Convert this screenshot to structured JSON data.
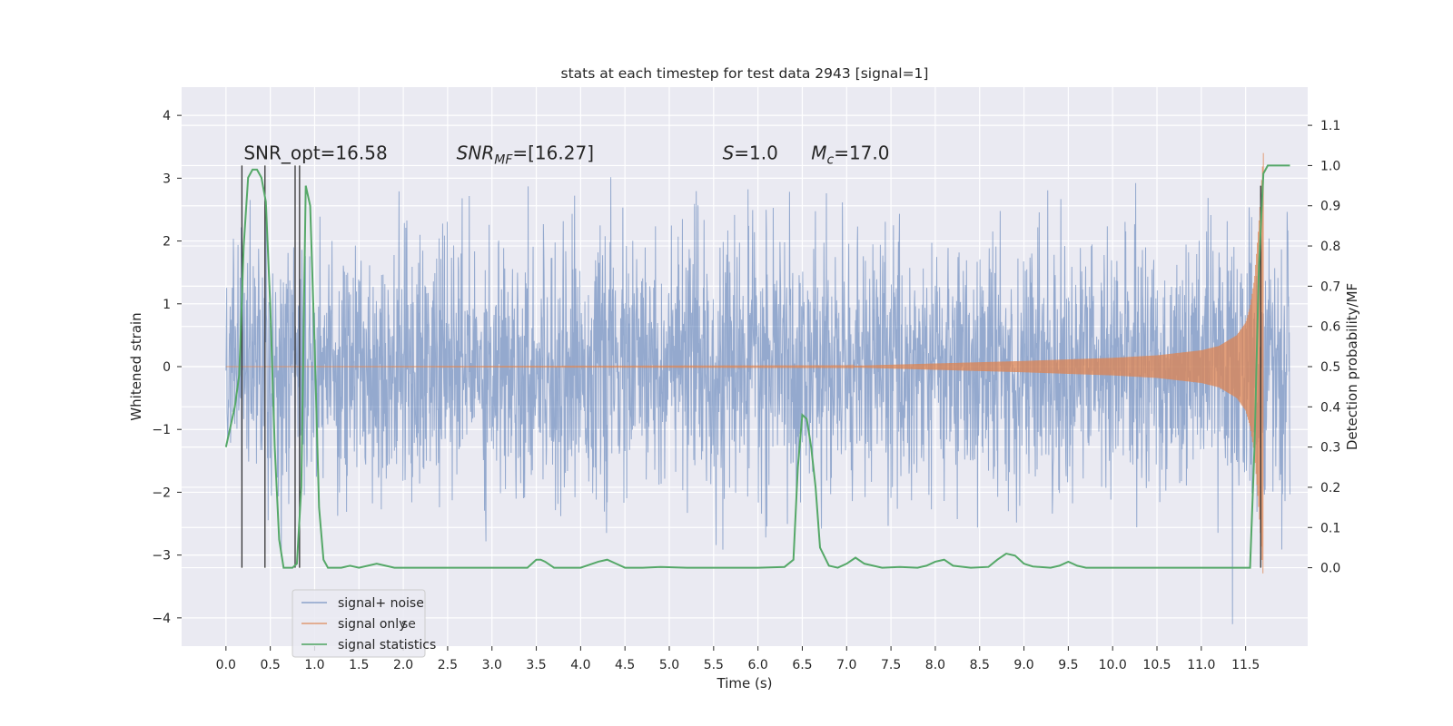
{
  "chart_data": {
    "type": "line",
    "title": "stats at each timestep for test data 2943 [signal=1]",
    "xlabel": "Time (s)",
    "ylabel": "Whitened strain",
    "y2label": "Detection probability/MF",
    "xlim": [
      -0.5,
      12.2
    ],
    "ylim": [
      -4.45,
      4.45
    ],
    "y2lim": [
      -0.195,
      1.195
    ],
    "x_ticks": [
      0.0,
      0.5,
      1.0,
      1.5,
      2.0,
      2.5,
      3.0,
      3.5,
      4.0,
      4.5,
      5.0,
      5.5,
      6.0,
      6.5,
      7.0,
      7.5,
      8.0,
      8.5,
      9.0,
      9.5,
      10.0,
      10.5,
      11.0,
      11.5
    ],
    "x_tick_labels": [
      "0.0",
      "0.5",
      "1.0",
      "1.5",
      "2.0",
      "2.5",
      "3.0",
      "3.5",
      "4.0",
      "4.5",
      "5.0",
      "5.5",
      "6.0",
      "6.5",
      "7.0",
      "7.5",
      "8.0",
      "8.5",
      "9.0",
      "9.5",
      "10.0",
      "10.5",
      "11.0",
      "11.5"
    ],
    "y_ticks": [
      -4,
      -3,
      -2,
      -1,
      0,
      1,
      2,
      3,
      4
    ],
    "y_tick_labels": [
      "−4",
      "−3",
      "−2",
      "−1",
      "0",
      "1",
      "2",
      "3",
      "4"
    ],
    "y2_ticks": [
      0.0,
      0.1,
      0.2,
      0.3,
      0.4,
      0.5,
      0.6,
      0.7,
      0.8,
      0.9,
      1.0,
      1.1
    ],
    "y2_tick_labels": [
      "0.0",
      "0.1",
      "0.2",
      "0.3",
      "0.4",
      "0.5",
      "0.6",
      "0.7",
      "0.8",
      "0.9",
      "1.0",
      "1.1"
    ],
    "grid": true,
    "legend_position": "bottom-left",
    "annotations": [
      {
        "text": "SNR_opt=16.58",
        "x": 0.2,
        "y": 3.3
      },
      {
        "text": "SNR_MF=[16.27]",
        "x": 2.6,
        "y": 3.3
      },
      {
        "text": "S=1.0",
        "x": 5.6,
        "y": 3.3
      },
      {
        "text": "M_c=17.0",
        "x": 6.6,
        "y": 3.3
      }
    ],
    "series": [
      {
        "name": "signal+ noise",
        "color": "#4c72b0",
        "axis": "left",
        "t_range": [
          0.0,
          12.0
        ],
        "std": 1.0
      },
      {
        "name": "signal only",
        "color": "#dd8452",
        "axis": "left",
        "envelope": {
          "t": [
            0.0,
            7.0,
            8.0,
            9.0,
            10.0,
            10.5,
            11.0,
            11.2,
            11.4,
            11.5,
            11.55,
            11.6,
            11.65,
            11.7
          ],
          "amp": [
            0.0,
            0.01,
            0.05,
            0.09,
            0.14,
            0.18,
            0.26,
            0.33,
            0.5,
            0.7,
            0.95,
            1.4,
            2.3,
            3.4
          ]
        }
      },
      {
        "name": "signal statistics",
        "color": "#55a868",
        "axis": "right",
        "x": [
          0.0,
          0.1,
          0.15,
          0.2,
          0.25,
          0.3,
          0.35,
          0.4,
          0.45,
          0.5,
          0.55,
          0.6,
          0.65,
          0.7,
          0.75,
          0.8,
          0.85,
          0.9,
          0.95,
          1.0,
          1.05,
          1.1,
          1.15,
          1.2,
          1.3,
          1.4,
          1.5,
          1.6,
          1.7,
          1.8,
          1.9,
          2.0,
          2.5,
          3.0,
          3.4,
          3.5,
          3.55,
          3.6,
          3.7,
          3.8,
          4.0,
          4.2,
          4.3,
          4.4,
          4.5,
          4.7,
          4.9,
          5.2,
          5.5,
          6.0,
          6.3,
          6.4,
          6.45,
          6.5,
          6.55,
          6.6,
          6.65,
          6.7,
          6.8,
          6.9,
          7.0,
          7.1,
          7.2,
          7.4,
          7.6,
          7.8,
          7.9,
          8.0,
          8.1,
          8.2,
          8.4,
          8.6,
          8.7,
          8.8,
          8.9,
          9.0,
          9.1,
          9.3,
          9.4,
          9.5,
          9.55,
          9.6,
          9.7,
          9.8,
          10.0,
          10.5,
          11.0,
          11.5,
          11.55,
          11.6,
          11.65,
          11.7,
          11.75,
          11.8,
          11.85,
          11.9,
          12.0
        ],
        "values": [
          0.3,
          0.4,
          0.48,
          0.8,
          0.97,
          0.99,
          0.99,
          0.97,
          0.91,
          0.65,
          0.3,
          0.07,
          0.0,
          0.0,
          0.0,
          0.01,
          0.2,
          0.95,
          0.9,
          0.55,
          0.15,
          0.02,
          0.0,
          0.0,
          0.0,
          0.005,
          0.0,
          0.005,
          0.01,
          0.005,
          0.0,
          0.0,
          0.0,
          0.0,
          0.0,
          0.02,
          0.02,
          0.015,
          0.0,
          0.0,
          0.0,
          0.015,
          0.02,
          0.01,
          0.0,
          0.0,
          0.002,
          0.0,
          0.0,
          0.0,
          0.002,
          0.02,
          0.25,
          0.38,
          0.37,
          0.3,
          0.2,
          0.05,
          0.005,
          0.0,
          0.01,
          0.025,
          0.01,
          0.0,
          0.002,
          0.0,
          0.005,
          0.015,
          0.02,
          0.005,
          0.0,
          0.002,
          0.02,
          0.035,
          0.03,
          0.01,
          0.003,
          0.0,
          0.005,
          0.015,
          0.01,
          0.005,
          0.0,
          0.0,
          0.0,
          0.0,
          0.0,
          0.0,
          0.0,
          0.3,
          0.75,
          0.98,
          1.0,
          1.0,
          1.0,
          1.0,
          1.0
        ]
      }
    ],
    "event_lines": {
      "color": "#333333",
      "axis": "right",
      "lines": [
        {
          "x": 0.18,
          "y0": 0.0,
          "y1": 1.0
        },
        {
          "x": 0.44,
          "y0": 0.0,
          "y1": 1.0
        },
        {
          "x": 0.78,
          "y0": 0.0,
          "y1": 1.0
        },
        {
          "x": 0.83,
          "y0": 0.0,
          "y1": 1.0
        },
        {
          "x": 11.67,
          "y0": 0.0,
          "y1": 0.95
        }
      ]
    },
    "legend_overlap_remnant": "se"
  }
}
